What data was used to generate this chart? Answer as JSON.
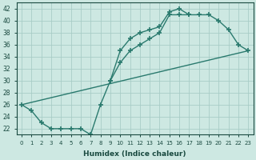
{
  "xlabel": "Humidex (Indice chaleur)",
  "ylabel": "",
  "xlim": [
    -0.5,
    23.5
  ],
  "ylim": [
    21.0,
    43.0
  ],
  "yticks": [
    22,
    24,
    26,
    28,
    30,
    32,
    34,
    36,
    38,
    40,
    42
  ],
  "xticks": [
    0,
    1,
    2,
    3,
    4,
    5,
    6,
    7,
    8,
    9,
    10,
    11,
    12,
    13,
    14,
    15,
    16,
    17,
    18,
    19,
    20,
    21,
    22,
    23
  ],
  "background_color": "#cde8e2",
  "grid_color": "#a8cdc7",
  "line_color": "#2a7a6e",
  "line1_y": [
    26,
    25,
    23,
    22,
    22,
    22,
    22,
    21,
    26,
    30,
    35,
    37,
    38,
    38.5,
    39,
    41.5,
    42,
    41,
    41,
    41,
    40,
    38.5,
    36,
    35
  ],
  "line2_y": [
    null,
    null,
    null,
    null,
    null,
    null,
    null,
    null,
    null,
    30,
    33,
    35,
    36,
    37,
    38,
    41,
    41,
    41,
    null,
    null,
    null,
    null,
    null,
    null
  ],
  "line3_x": [
    0,
    23
  ],
  "line3_y": [
    26,
    35
  ]
}
